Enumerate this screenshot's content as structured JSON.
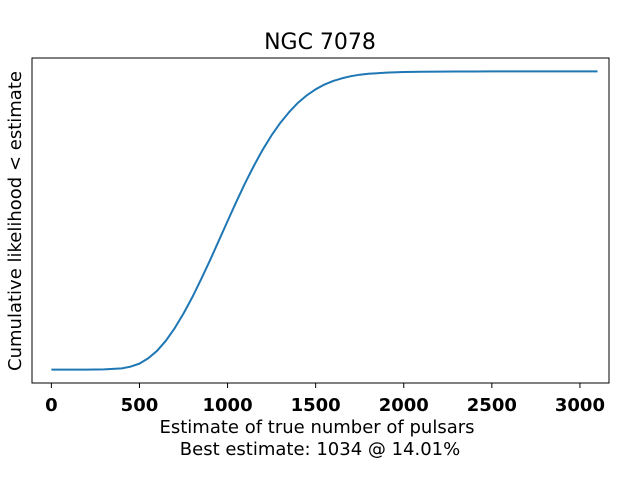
{
  "chart_data": {
    "type": "line",
    "title": "NGC 7078",
    "xlabel": "Estimate of true number of pulsars",
    "subtitle": "Best estimate: 1034 @ 14.01%",
    "ylabel": "Cumulative likelihood < estimate",
    "xlim": [
      -110,
      3165
    ],
    "ylim": [
      -0.045,
      1.045
    ],
    "xticks": [
      0,
      500,
      1000,
      1500,
      2000,
      2500,
      3000
    ],
    "xtick_labels": [
      "0",
      "500",
      "1000",
      "1500",
      "2000",
      "2500",
      "3000"
    ],
    "yticks": [],
    "grid": false,
    "series": [
      {
        "color": "#1f77b4",
        "x": [
          0,
          100,
          200,
          300,
          400,
          450,
          500,
          550,
          600,
          650,
          700,
          750,
          800,
          850,
          900,
          950,
          1000,
          1050,
          1100,
          1150,
          1200,
          1250,
          1300,
          1350,
          1400,
          1450,
          1500,
          1550,
          1600,
          1650,
          1700,
          1750,
          1800,
          1850,
          1900,
          2000,
          2100,
          2200,
          2300,
          2400,
          2500,
          2600,
          2700,
          2800,
          2900,
          3000,
          3100
        ],
        "y": [
          0.0,
          0.0,
          0.0,
          0.0005,
          0.004,
          0.01,
          0.02,
          0.038,
          0.063,
          0.097,
          0.139,
          0.188,
          0.243,
          0.303,
          0.366,
          0.432,
          0.498,
          0.563,
          0.626,
          0.684,
          0.738,
          0.786,
          0.828,
          0.864,
          0.895,
          0.92,
          0.94,
          0.956,
          0.968,
          0.977,
          0.984,
          0.989,
          0.992,
          0.994,
          0.996,
          0.998,
          0.999,
          0.9995,
          0.9998,
          0.9999,
          1.0,
          1.0,
          1.0,
          1.0,
          1.0,
          1.0,
          1.0
        ]
      }
    ]
  }
}
